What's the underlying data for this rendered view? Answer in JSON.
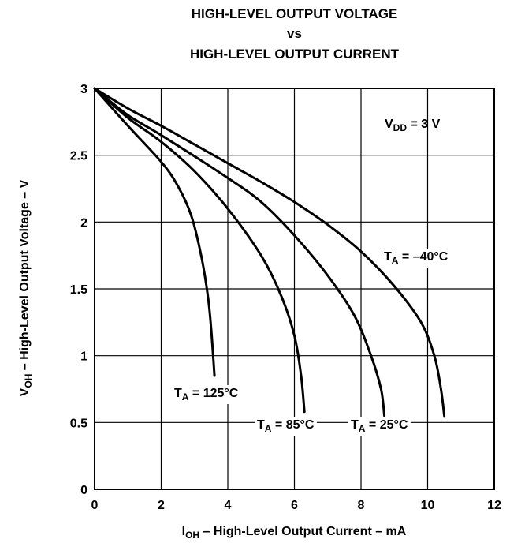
{
  "chart_data": {
    "type": "line",
    "title_lines": [
      "HIGH-LEVEL OUTPUT VOLTAGE",
      "vs",
      "HIGH-LEVEL OUTPUT CURRENT"
    ],
    "xlabel": {
      "main": "I",
      "sub": "OH",
      "rest": " – High-Level Output Current – mA"
    },
    "ylabel": {
      "main": "V",
      "sub": "OH",
      "rest": " – High-Level Output Voltage – V"
    },
    "xlim": [
      0,
      12
    ],
    "ylim": [
      0,
      3
    ],
    "xticks": [
      "0",
      "2",
      "4",
      "6",
      "8",
      "10",
      "12"
    ],
    "yticks": [
      "0",
      "0.5",
      "1",
      "1.5",
      "2",
      "2.5",
      "3"
    ],
    "grid": true,
    "condition": {
      "main": "V",
      "sub": "DD",
      "rest": " = 3 V"
    },
    "series": [
      {
        "name": "T_A = 125°C",
        "label": {
          "main": "T",
          "sub": "A",
          "rest": " = 125°C"
        },
        "points": [
          [
            0,
            3
          ],
          [
            1,
            2.72
          ],
          [
            2,
            2.45
          ],
          [
            2.5,
            2.27
          ],
          [
            2.9,
            2.05
          ],
          [
            3.2,
            1.75
          ],
          [
            3.4,
            1.45
          ],
          [
            3.5,
            1.2
          ],
          [
            3.6,
            0.85
          ]
        ]
      },
      {
        "name": "T_A = 85°C",
        "label": {
          "main": "T",
          "sub": "A",
          "rest": " = 85°C"
        },
        "points": [
          [
            0,
            3
          ],
          [
            1,
            2.78
          ],
          [
            2,
            2.6
          ],
          [
            3,
            2.38
          ],
          [
            4,
            2.1
          ],
          [
            5,
            1.75
          ],
          [
            5.6,
            1.45
          ],
          [
            6,
            1.15
          ],
          [
            6.2,
            0.85
          ],
          [
            6.3,
            0.58
          ]
        ]
      },
      {
        "name": "T_A = 25°C",
        "label": {
          "main": "T",
          "sub": "A",
          "rest": " = 25°C"
        },
        "points": [
          [
            0,
            3
          ],
          [
            1,
            2.8
          ],
          [
            2,
            2.65
          ],
          [
            4,
            2.33
          ],
          [
            5,
            2.15
          ],
          [
            6,
            1.9
          ],
          [
            7,
            1.6
          ],
          [
            7.8,
            1.3
          ],
          [
            8.3,
            1.0
          ],
          [
            8.6,
            0.75
          ],
          [
            8.7,
            0.55
          ]
        ]
      },
      {
        "name": "T_A = –40°C",
        "label": {
          "main": "T",
          "sub": "A",
          "rest": " = –40°C"
        },
        "points": [
          [
            0,
            3
          ],
          [
            1,
            2.85
          ],
          [
            2,
            2.72
          ],
          [
            3,
            2.58
          ],
          [
            4,
            2.44
          ],
          [
            5,
            2.3
          ],
          [
            6,
            2.15
          ],
          [
            7,
            1.98
          ],
          [
            8,
            1.78
          ],
          [
            9,
            1.52
          ],
          [
            9.8,
            1.25
          ],
          [
            10.2,
            1.0
          ],
          [
            10.4,
            0.75
          ],
          [
            10.5,
            0.55
          ]
        ]
      }
    ]
  }
}
